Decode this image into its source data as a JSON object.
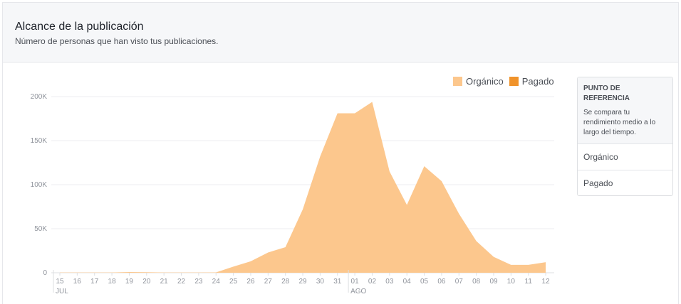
{
  "header": {
    "title": "Alcance de la publicación",
    "subtitle": "Número de personas que han visto tus publicaciones."
  },
  "legend": [
    {
      "label": "Orgánico",
      "color": "#fcc78d"
    },
    {
      "label": "Pagado",
      "color": "#f0932b"
    }
  ],
  "benchmark": {
    "title": "PUNTO DE REFERENCIA",
    "description": "Se compara tu rendimiento medio a lo largo del tiempo.",
    "rows": [
      "Orgánico",
      "Pagado"
    ]
  },
  "chart_data": {
    "type": "area",
    "x": [
      "15",
      "16",
      "17",
      "18",
      "19",
      "20",
      "21",
      "22",
      "23",
      "24",
      "25",
      "26",
      "27",
      "28",
      "29",
      "30",
      "31",
      "01",
      "02",
      "03",
      "04",
      "05",
      "06",
      "07",
      "08",
      "09",
      "10",
      "11",
      "12"
    ],
    "month_labels": [
      {
        "label": "JUL",
        "at": "15"
      },
      {
        "label": "AGO",
        "at": "01"
      }
    ],
    "series": [
      {
        "name": "Orgánico",
        "color": "#fcc78d",
        "values": [
          300,
          300,
          300,
          300,
          800,
          600,
          300,
          300,
          300,
          400,
          7000,
          13000,
          23000,
          29000,
          72000,
          132000,
          181000,
          181000,
          194000,
          115000,
          77000,
          121000,
          104000,
          67000,
          36000,
          18000,
          9000,
          9000,
          12000
        ]
      },
      {
        "name": "Pagado",
        "color": "#f0932b",
        "values": [
          0,
          0,
          0,
          0,
          0,
          0,
          0,
          0,
          0,
          0,
          0,
          0,
          0,
          0,
          0,
          0,
          0,
          0,
          0,
          0,
          0,
          0,
          0,
          0,
          0,
          0,
          0,
          0,
          0
        ]
      }
    ],
    "yticks": [
      0,
      50000,
      100000,
      150000,
      200000
    ],
    "ytick_labels": [
      "0",
      "50K",
      "100K",
      "150K",
      "200K"
    ],
    "ylim": [
      0,
      200000
    ],
    "grid": true
  }
}
